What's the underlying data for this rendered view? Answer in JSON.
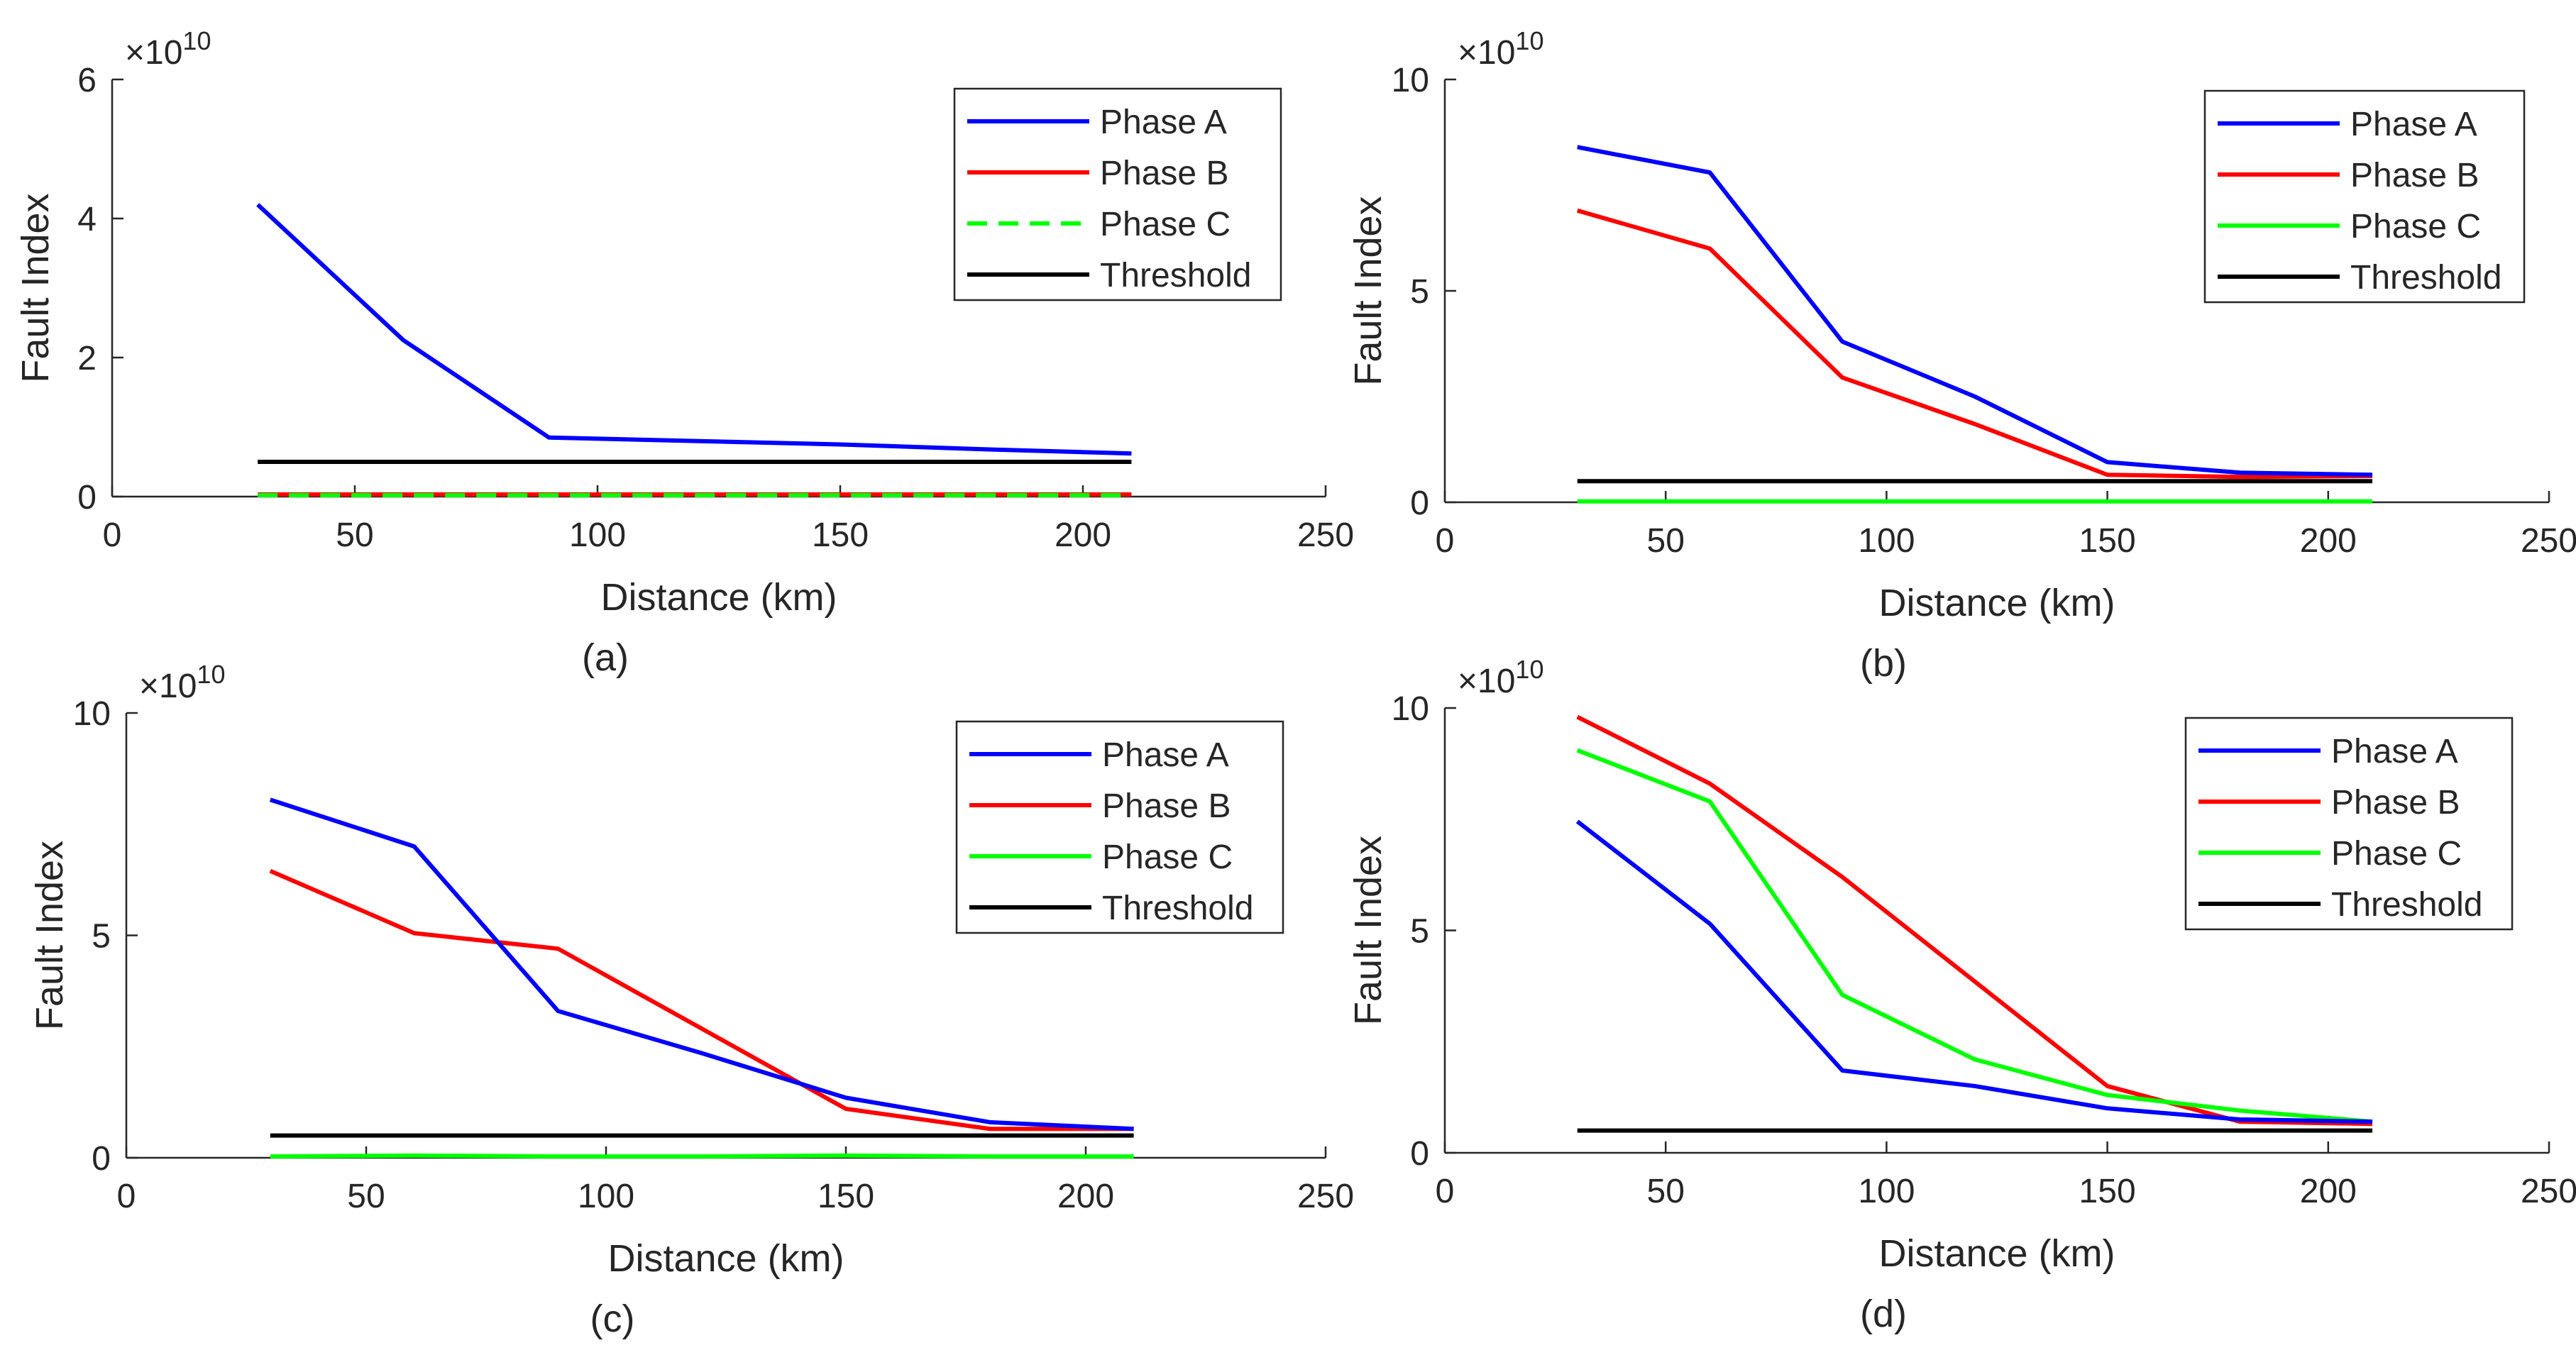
{
  "chart_data": [
    {
      "type": "line",
      "panel_label": "(a)",
      "xlabel": "Distance (km)",
      "ylabel": "Fault Index",
      "exponent_label": "×10",
      "exponent_power": "10",
      "xlim": [
        0,
        250
      ],
      "ylim": [
        0,
        6
      ],
      "xticks": [
        "0",
        "50",
        "100",
        "150",
        "200",
        "250"
      ],
      "yticks": [
        "0",
        "2",
        "4",
        "6"
      ],
      "x": [
        30,
        60,
        90,
        120,
        150,
        180,
        210
      ],
      "series": [
        {
          "name": "Phase A",
          "color": "#0000ff",
          "dash": false,
          "values": [
            4.2,
            2.25,
            0.85,
            0.8,
            0.75,
            0.68,
            0.62
          ]
        },
        {
          "name": "Phase B",
          "color": "#ff0000",
          "dash": false,
          "values": [
            0.03,
            0.03,
            0.03,
            0.03,
            0.03,
            0.03,
            0.03
          ]
        },
        {
          "name": "Phase C",
          "color": "#00ff00",
          "dash": true,
          "values": [
            0.02,
            0.02,
            0.02,
            0.02,
            0.02,
            0.02,
            0.02
          ]
        },
        {
          "name": "Threshold",
          "color": "#000000",
          "dash": false,
          "values": [
            0.5,
            0.5,
            0.5,
            0.5,
            0.5,
            0.5,
            0.5
          ]
        }
      ]
    },
    {
      "type": "line",
      "panel_label": "(b)",
      "xlabel": "Distance (km)",
      "ylabel": "Fault Index",
      "exponent_label": "×10",
      "exponent_power": "10",
      "xlim": [
        0,
        250
      ],
      "ylim": [
        0,
        10
      ],
      "xticks": [
        "0",
        "50",
        "100",
        "150",
        "200",
        "250"
      ],
      "yticks": [
        "0",
        "5",
        "10"
      ],
      "x": [
        30,
        60,
        90,
        120,
        150,
        180,
        210
      ],
      "series": [
        {
          "name": "Phase A",
          "color": "#0000ff",
          "dash": false,
          "values": [
            8.4,
            7.8,
            3.8,
            2.5,
            0.95,
            0.7,
            0.65
          ]
        },
        {
          "name": "Phase B",
          "color": "#ff0000",
          "dash": false,
          "values": [
            6.9,
            6.0,
            2.95,
            1.85,
            0.65,
            0.6,
            0.62
          ]
        },
        {
          "name": "Phase C",
          "color": "#00ff00",
          "dash": false,
          "values": [
            0.02,
            0.02,
            0.02,
            0.02,
            0.02,
            0.02,
            0.02
          ]
        },
        {
          "name": "Threshold",
          "color": "#000000",
          "dash": false,
          "values": [
            0.5,
            0.5,
            0.5,
            0.5,
            0.5,
            0.5,
            0.5
          ]
        }
      ]
    },
    {
      "type": "line",
      "panel_label": "(c)",
      "xlabel": "Distance (km)",
      "ylabel": "Fault Index",
      "exponent_label": "×10",
      "exponent_power": "10",
      "xlim": [
        0,
        250
      ],
      "ylim": [
        0,
        10
      ],
      "xticks": [
        "0",
        "50",
        "100",
        "150",
        "200",
        "250"
      ],
      "yticks": [
        "0",
        "5",
        "10"
      ],
      "x": [
        30,
        60,
        90,
        120,
        150,
        180,
        210
      ],
      "series": [
        {
          "name": "Phase A",
          "color": "#0000ff",
          "dash": false,
          "values": [
            8.05,
            7.0,
            3.3,
            2.35,
            1.35,
            0.8,
            0.65
          ]
        },
        {
          "name": "Phase B",
          "color": "#ff0000",
          "dash": false,
          "values": [
            6.45,
            5.05,
            4.7,
            2.9,
            1.1,
            0.65,
            0.65
          ]
        },
        {
          "name": "Phase C",
          "color": "#00ff00",
          "dash": false,
          "values": [
            0.03,
            0.05,
            0.03,
            0.03,
            0.05,
            0.03,
            0.03
          ]
        },
        {
          "name": "Threshold",
          "color": "#000000",
          "dash": false,
          "values": [
            0.5,
            0.5,
            0.5,
            0.5,
            0.5,
            0.5,
            0.5
          ]
        }
      ]
    },
    {
      "type": "line",
      "panel_label": "(d)",
      "xlabel": "Distance (km)",
      "ylabel": "Fault Index",
      "exponent_label": "×10",
      "exponent_power": "10",
      "xlim": [
        0,
        250
      ],
      "ylim": [
        0,
        10
      ],
      "xticks": [
        "0",
        "50",
        "100",
        "150",
        "200",
        "250"
      ],
      "yticks": [
        "0",
        "5",
        "10"
      ],
      "x": [
        30,
        60,
        90,
        120,
        150,
        180,
        210
      ],
      "series": [
        {
          "name": "Phase A",
          "color": "#0000ff",
          "dash": false,
          "values": [
            7.45,
            5.15,
            1.85,
            1.5,
            1.0,
            0.75,
            0.7
          ]
        },
        {
          "name": "Phase B",
          "color": "#ff0000",
          "dash": false,
          "values": [
            9.8,
            8.3,
            6.2,
            3.85,
            1.5,
            0.7,
            0.65
          ]
        },
        {
          "name": "Phase C",
          "color": "#00ff00",
          "dash": false,
          "values": [
            9.05,
            7.9,
            3.55,
            2.1,
            1.3,
            0.95,
            0.7
          ]
        },
        {
          "name": "Threshold",
          "color": "#000000",
          "dash": false,
          "values": [
            0.5,
            0.5,
            0.5,
            0.5,
            0.5,
            0.5,
            0.5
          ]
        }
      ]
    }
  ]
}
